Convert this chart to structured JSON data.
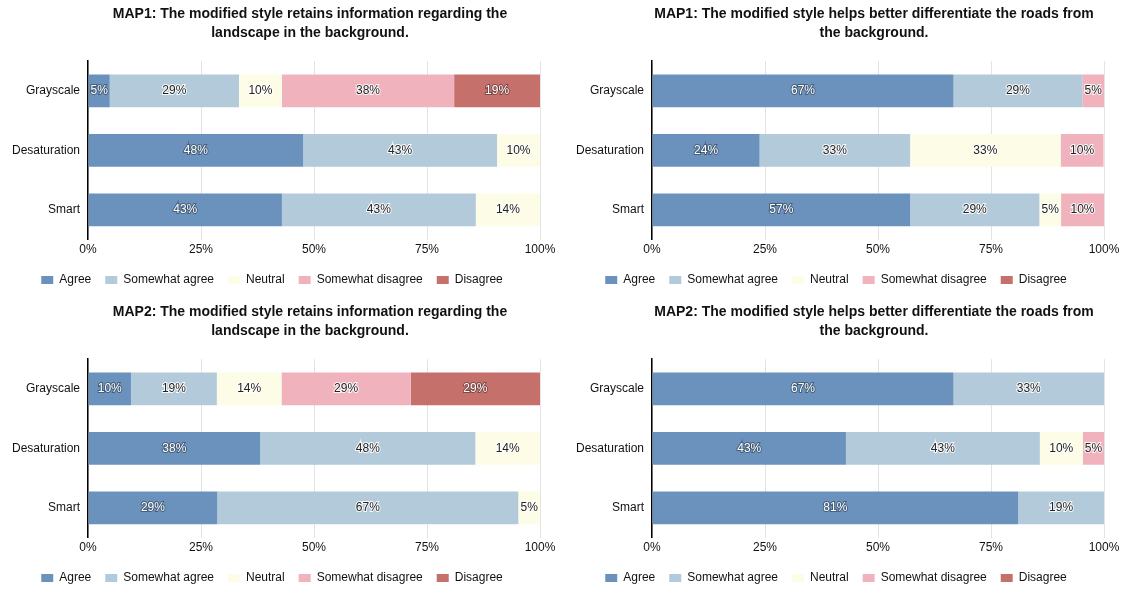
{
  "chart_data": [
    {
      "type": "bar",
      "orientation": "horizontal",
      "stacked": true,
      "title": "MAP1: The modified style retains information regarding the landscape in the background.",
      "categories": [
        "Grayscale",
        "Desaturation",
        "Smart"
      ],
      "xlim": [
        0,
        100
      ],
      "xticks": [
        {
          "value": 0,
          "label": "0%"
        },
        {
          "value": 25,
          "label": "25%"
        },
        {
          "value": 50,
          "label": "50%"
        },
        {
          "value": 75,
          "label": "75%"
        },
        {
          "value": 100,
          "label": "100%"
        }
      ],
      "grid": "x",
      "legend": "bottom",
      "series": [
        {
          "name": "Agree",
          "color": "#6b92bd",
          "values": [
            4.8,
            47.6,
            42.9
          ],
          "value_labels": [
            "5%",
            "48%",
            "43%"
          ]
        },
        {
          "name": "Somewhat agree",
          "color": "#b3cadb",
          "values": [
            28.6,
            42.9,
            42.9
          ],
          "value_labels": [
            "29%",
            "43%",
            "43%"
          ]
        },
        {
          "name": "Neutral",
          "color": "#fdfce6",
          "values": [
            9.5,
            9.5,
            14.2
          ],
          "value_labels": [
            "10%",
            "10%",
            "14%"
          ]
        },
        {
          "name": "Somewhat disagree",
          "color": "#f0b3bd",
          "values": [
            38.1,
            0,
            0
          ],
          "value_labels": [
            "38%",
            null,
            null
          ]
        },
        {
          "name": "Disagree",
          "color": "#c6706c",
          "values": [
            19.0,
            0,
            0
          ],
          "value_labels": [
            "19%",
            null,
            null
          ]
        }
      ]
    },
    {
      "type": "bar",
      "orientation": "horizontal",
      "stacked": true,
      "title": "MAP1: The modified style helps better differentiate the roads from the background.",
      "categories": [
        "Grayscale",
        "Desaturation",
        "Smart"
      ],
      "xlim": [
        0,
        100
      ],
      "xticks": [
        {
          "value": 0,
          "label": "0%"
        },
        {
          "value": 25,
          "label": "25%"
        },
        {
          "value": 50,
          "label": "50%"
        },
        {
          "value": 75,
          "label": "75%"
        },
        {
          "value": 100,
          "label": "100%"
        }
      ],
      "grid": "x",
      "legend": "bottom",
      "series": [
        {
          "name": "Agree",
          "color": "#6b92bd",
          "values": [
            66.7,
            23.8,
            57.1
          ],
          "value_labels": [
            "67%",
            "24%",
            "57%"
          ]
        },
        {
          "name": "Somewhat agree",
          "color": "#b3cadb",
          "values": [
            28.5,
            33.3,
            28.6
          ],
          "value_labels": [
            "29%",
            "33%",
            "29%"
          ]
        },
        {
          "name": "Neutral",
          "color": "#fdfce6",
          "values": [
            0,
            33.3,
            4.8
          ],
          "value_labels": [
            null,
            "33%",
            "5%"
          ]
        },
        {
          "name": "Somewhat disagree",
          "color": "#f0b3bd",
          "values": [
            4.8,
            9.5,
            9.5
          ],
          "value_labels": [
            "5%",
            "10%",
            "10%"
          ]
        },
        {
          "name": "Disagree",
          "color": "#c6706c",
          "values": [
            0,
            0,
            0
          ],
          "value_labels": [
            null,
            null,
            null
          ]
        }
      ]
    },
    {
      "type": "bar",
      "orientation": "horizontal",
      "stacked": true,
      "title": "MAP2: The modified style retains information regarding the landscape in the background.",
      "categories": [
        "Grayscale",
        "Desaturation",
        "Smart"
      ],
      "xlim": [
        0,
        100
      ],
      "xticks": [
        {
          "value": 0,
          "label": "0%"
        },
        {
          "value": 25,
          "label": "25%"
        },
        {
          "value": 50,
          "label": "50%"
        },
        {
          "value": 75,
          "label": "75%"
        },
        {
          "value": 100,
          "label": "100%"
        }
      ],
      "grid": "x",
      "legend": "bottom",
      "series": [
        {
          "name": "Agree",
          "color": "#6b92bd",
          "values": [
            9.5,
            38.1,
            28.6
          ],
          "value_labels": [
            "10%",
            "38%",
            "29%"
          ]
        },
        {
          "name": "Somewhat agree",
          "color": "#b3cadb",
          "values": [
            19.0,
            47.6,
            66.6
          ],
          "value_labels": [
            "19%",
            "48%",
            "67%"
          ]
        },
        {
          "name": "Neutral",
          "color": "#fdfce6",
          "values": [
            14.3,
            14.3,
            4.8
          ],
          "value_labels": [
            "14%",
            "14%",
            "5%"
          ]
        },
        {
          "name": "Somewhat disagree",
          "color": "#f0b3bd",
          "values": [
            28.6,
            0,
            0
          ],
          "value_labels": [
            "29%",
            null,
            null
          ]
        },
        {
          "name": "Disagree",
          "color": "#c6706c",
          "values": [
            28.6,
            0,
            0
          ],
          "value_labels": [
            "29%",
            null,
            null
          ]
        }
      ]
    },
    {
      "type": "bar",
      "orientation": "horizontal",
      "stacked": true,
      "title": "MAP2: The modified style helps better differentiate the roads from the background.",
      "categories": [
        "Grayscale",
        "Desaturation",
        "Smart"
      ],
      "xlim": [
        0,
        100
      ],
      "xticks": [
        {
          "value": 0,
          "label": "0%"
        },
        {
          "value": 25,
          "label": "25%"
        },
        {
          "value": 50,
          "label": "50%"
        },
        {
          "value": 75,
          "label": "75%"
        },
        {
          "value": 100,
          "label": "100%"
        }
      ],
      "grid": "x",
      "legend": "bottom",
      "series": [
        {
          "name": "Agree",
          "color": "#6b92bd",
          "values": [
            66.7,
            42.9,
            81.0
          ],
          "value_labels": [
            "67%",
            "43%",
            "81%"
          ]
        },
        {
          "name": "Somewhat agree",
          "color": "#b3cadb",
          "values": [
            33.3,
            42.9,
            19.0
          ],
          "value_labels": [
            "33%",
            "43%",
            "19%"
          ]
        },
        {
          "name": "Neutral",
          "color": "#fdfce6",
          "values": [
            0,
            9.5,
            0
          ],
          "value_labels": [
            null,
            "10%",
            null
          ]
        },
        {
          "name": "Somewhat disagree",
          "color": "#f0b3bd",
          "values": [
            0,
            4.7,
            0
          ],
          "value_labels": [
            null,
            "5%",
            null
          ]
        },
        {
          "name": "Disagree",
          "color": "#c6706c",
          "values": [
            0,
            0,
            0
          ],
          "value_labels": [
            null,
            null,
            null
          ]
        }
      ]
    }
  ]
}
